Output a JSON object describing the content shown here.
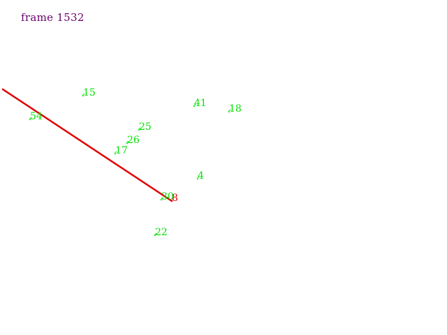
{
  "frame_label": "frame 1532",
  "colors": {
    "background": "#ffffff",
    "frame_label": "#6a006a",
    "marker": "#00e000",
    "selected_marker": "#e00000",
    "track_line": "#e00000"
  },
  "markers": [
    {
      "id": "15",
      "label": "15",
      "selected": false
    },
    {
      "id": "54",
      "label": "54",
      "selected": false
    },
    {
      "id": "41",
      "label": "41",
      "selected": false
    },
    {
      "id": "18",
      "label": "18",
      "selected": false
    },
    {
      "id": "25",
      "label": "25",
      "selected": false
    },
    {
      "id": "26",
      "label": "26",
      "selected": false
    },
    {
      "id": "17",
      "label": "17",
      "selected": false
    },
    {
      "id": "4",
      "label": "4",
      "selected": false
    },
    {
      "id": "30",
      "label": "30",
      "selected": false
    },
    {
      "id": "8",
      "label": "8",
      "selected": true
    },
    {
      "id": "22",
      "label": "22",
      "selected": false
    }
  ]
}
